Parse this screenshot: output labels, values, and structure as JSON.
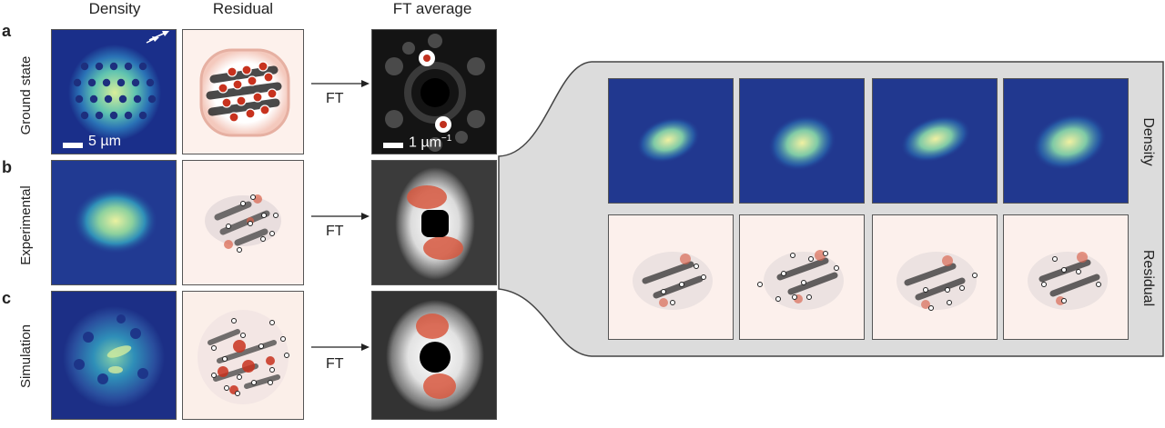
{
  "column_headers": [
    "Density",
    "Residual",
    "FT average"
  ],
  "panel_labels": [
    "a",
    "b",
    "c"
  ],
  "row_labels": [
    "Ground state",
    "Experimental",
    "Simulation"
  ],
  "transform_label": "FT",
  "scale_bar_left": "5 µm",
  "scale_bar_ft": "1 µm",
  "scale_bar_ft_exp": "−1",
  "side_labels": [
    "Density",
    "Residual"
  ],
  "colors": {
    "density_low": "#1a2f8a",
    "density_high": "#f2f0a0",
    "residual_pos": "#c8321e",
    "residual_neg": "#222222",
    "callout_bg": "#dcdcdc"
  }
}
